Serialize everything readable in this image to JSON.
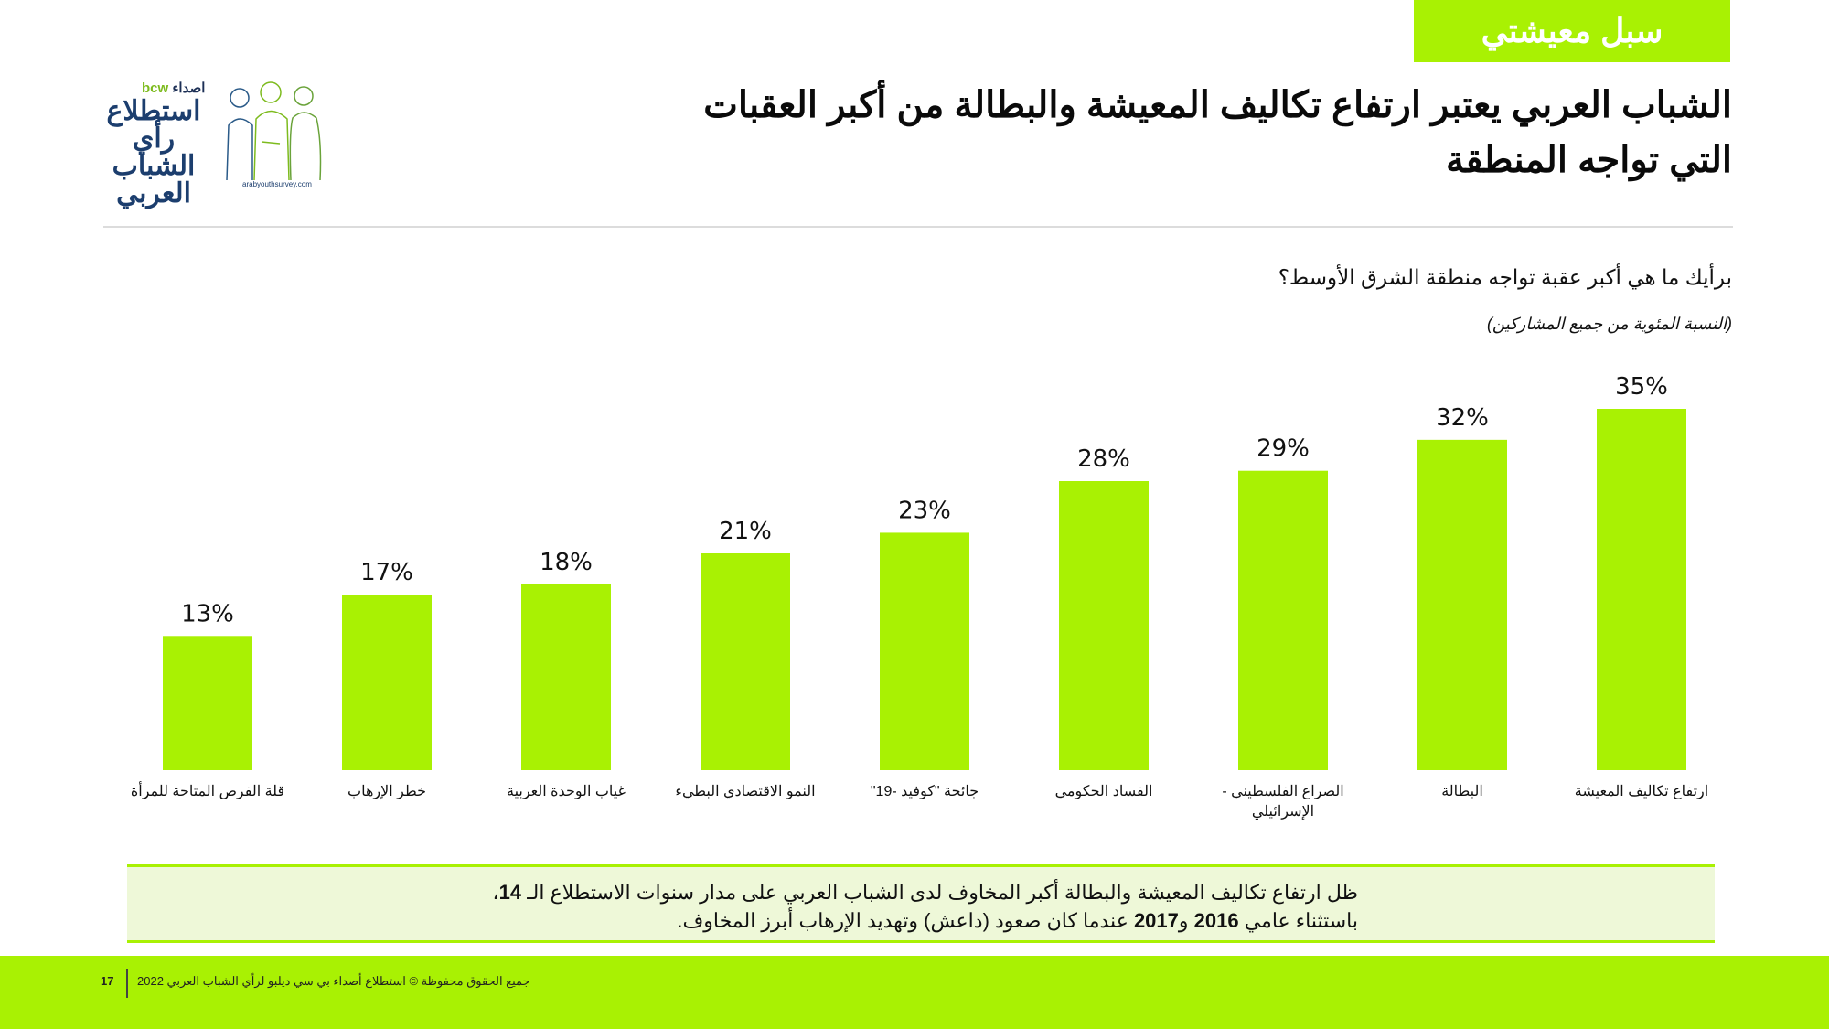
{
  "section_tag": "سبل معيشتي",
  "logo": {
    "bcw": "bcw",
    "asda": "اصداء",
    "title_lines": [
      "استطلاع",
      "رأي الشباب",
      "العربي"
    ],
    "url": "arabyouthsurvey.com"
  },
  "headline": "الشباب العربي يعتبر ارتفاع تكاليف المعيشة والبطالة من أكبر العقبات التي تواجه المنطقة",
  "question": "برأيك ما هي أكبر عقبة تواجه منطقة الشرق الأوسط؟",
  "note": "(النسبة المئوية من جميع المشاركين)",
  "chart_data": {
    "type": "bar",
    "categories": [
      "قلة الفرص المتاحة للمرأة",
      "خطر الإرهاب",
      "غياب الوحدة العربية",
      "النمو الاقتصادي البطيء",
      "جائحة \"كوفيد -19\"",
      "الفساد الحكومي",
      "الصراع الفلسطيني - الإسرائيلي",
      "البطالة",
      "ارتفاع تكاليف المعيشة"
    ],
    "values": [
      13,
      17,
      18,
      21,
      23,
      28,
      29,
      32,
      35
    ],
    "value_suffix": "%",
    "ylim": [
      0,
      35
    ],
    "grid": false,
    "bar_color": "#a9f103"
  },
  "takeaway": {
    "line1_text": "ظل ارتفاع تكاليف المعيشة والبطالة أكبر المخاوف لدى الشباب العربي على مدار سنوات الاستطلاع الـ ",
    "line1_num": "14",
    "line1_end": "،",
    "line2_a": "باستثناء عامي ",
    "year1": "2016",
    "line2_and": " و",
    "year2": "2017",
    "line2_b": "  عندما كان صعود (داعش) وتهديد الإرهاب أبرز المخاوف."
  },
  "footer": {
    "page_number": "17",
    "text": "جميع الحقوق محفوظة © استطلاع أصداء بي سي ديلبو لرأي الشباب العربي 2022"
  }
}
